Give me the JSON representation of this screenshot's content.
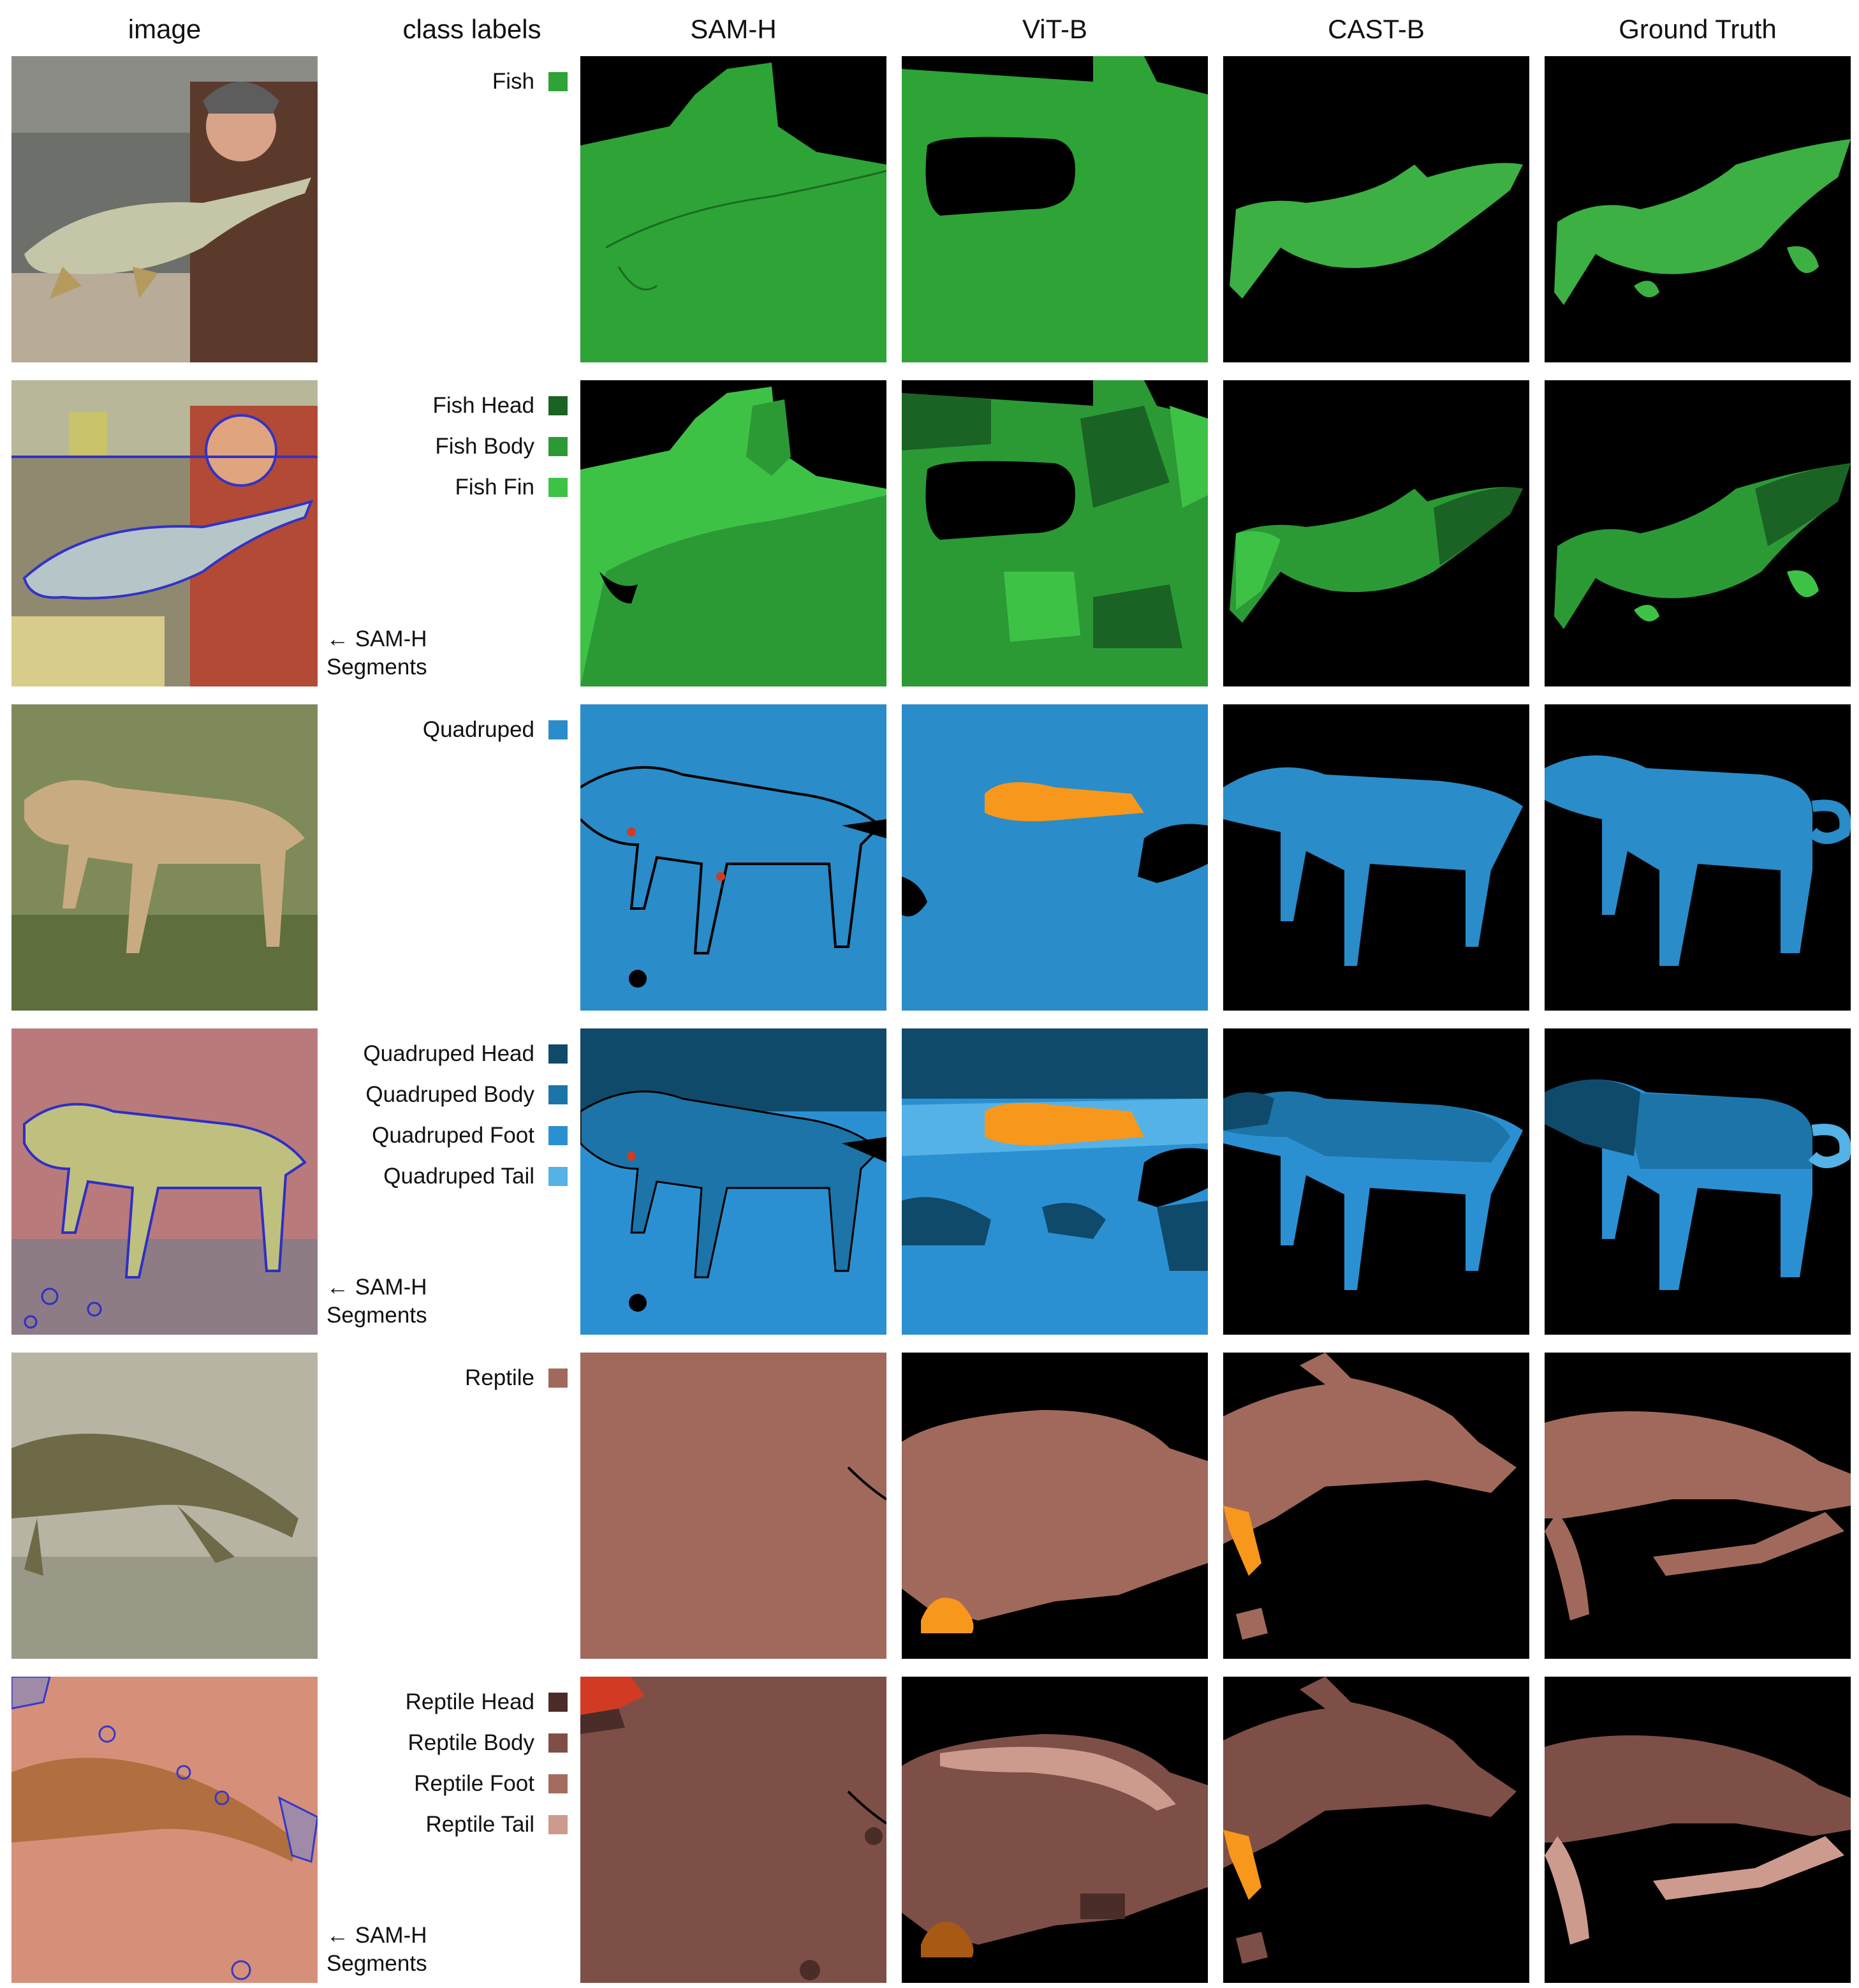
{
  "columns": [
    "image",
    "class labels",
    "SAM-H",
    "ViT-B",
    "CAST-B",
    "Ground Truth"
  ],
  "segments_note": {
    "arrow": "←",
    "line1": "SAM-H",
    "line2": "Segments"
  },
  "colors": {
    "background_mask": "#000000",
    "fish": "#2ea336",
    "fish_head": "#1a6324",
    "fish_body": "#2b9a35",
    "fish_fin": "#3ec246",
    "quadruped": "#2a8cc8",
    "quadruped_head": "#0f4a6b",
    "quadruped_body": "#1c74a8",
    "quadruped_foot": "#2b90d2",
    "quadruped_tail": "#55b2e6",
    "reptile": "#a0695c",
    "reptile_head": "#4a2c28",
    "reptile_body": "#7e4f47",
    "reptile_foot": "#a36c5e",
    "reptile_tail": "#cd9a8e",
    "orange_error": "#f7971b",
    "red_error": "#d33a24"
  },
  "rows": [
    {
      "labels": [
        {
          "text": "Fish",
          "color": "#2ea336"
        }
      ],
      "segments_note": false
    },
    {
      "labels": [
        {
          "text": "Fish Head",
          "color": "#1a6324"
        },
        {
          "text": "Fish Body",
          "color": "#2b9a35"
        },
        {
          "text": "Fish Fin",
          "color": "#3ec246"
        }
      ],
      "segments_note": true
    },
    {
      "labels": [
        {
          "text": "Quadruped",
          "color": "#2a8cc8"
        }
      ],
      "segments_note": false
    },
    {
      "labels": [
        {
          "text": "Quadruped Head",
          "color": "#0f4a6b"
        },
        {
          "text": "Quadruped Body",
          "color": "#1c74a8"
        },
        {
          "text": "Quadruped Foot",
          "color": "#2b90d2"
        },
        {
          "text": "Quadruped Tail",
          "color": "#55b2e6"
        }
      ],
      "segments_note": true
    },
    {
      "labels": [
        {
          "text": "Reptile",
          "color": "#a0695c"
        }
      ],
      "segments_note": false
    },
    {
      "labels": [
        {
          "text": "Reptile Head",
          "color": "#4a2c28"
        },
        {
          "text": "Reptile Body",
          "color": "#7e4f47"
        },
        {
          "text": "Reptile Foot",
          "color": "#a36c5e"
        },
        {
          "text": "Reptile Tail",
          "color": "#cd9a8e"
        }
      ],
      "segments_note": true
    }
  ]
}
